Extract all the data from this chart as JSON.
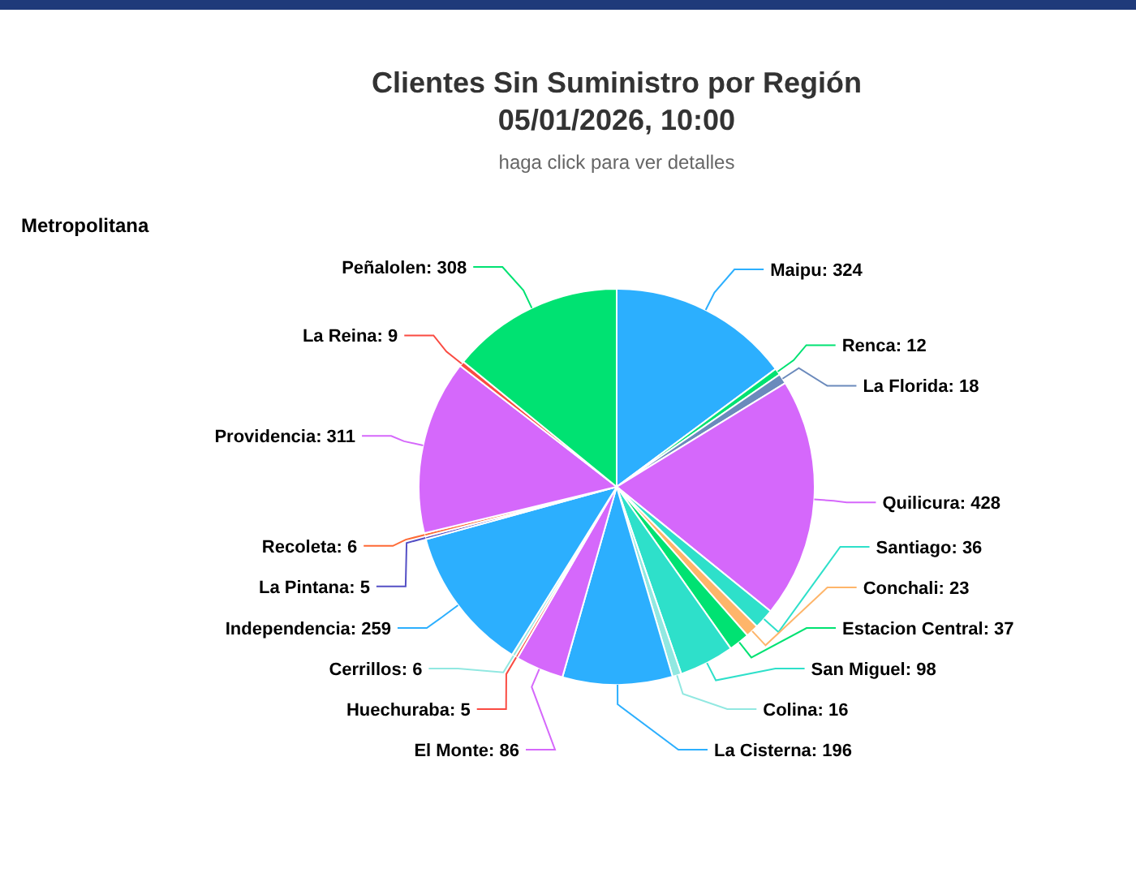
{
  "chart_data": {
    "type": "pie",
    "title": "Clientes Sin Suministro por Región\n05/01/2026, 10:00",
    "subtitle": "haga click para ver detalles",
    "annotations": [
      "Metropolitana"
    ],
    "categories": [
      "Maipu",
      "Renca",
      "La Florida",
      "Quilicura",
      "Santiago",
      "Conchali",
      "Estacion Central",
      "San Miguel",
      "Colina",
      "La Cisterna",
      "El Monte",
      "Huechuraba",
      "Cerrillos",
      "Independencia",
      "La Pintana",
      "Recoleta",
      "Providencia",
      "La Reina",
      "Peñalolen"
    ],
    "values": [
      324,
      12,
      18,
      428,
      36,
      23,
      37,
      98,
      16,
      196,
      86,
      5,
      6,
      259,
      5,
      6,
      311,
      9,
      308
    ],
    "colors": [
      "#2caffe",
      "#00e272",
      "#6b8abc",
      "#d568fb",
      "#2ee0ca",
      "#feb56a",
      "#00e272",
      "#2ee0ca",
      "#91e8e1",
      "#2caffe",
      "#d568fb",
      "#fa4b42",
      "#91e8e1",
      "#2caffe",
      "#544fc5",
      "#fe6a35",
      "#d568fb",
      "#fa4b42",
      "#00e272"
    ],
    "value_labels": [
      ": 324",
      ": 12",
      ": 18",
      ": 428",
      ": 36",
      ": 23",
      ": 37",
      ": 98",
      ": 16",
      ": 196",
      ": 86",
      ": 5",
      ": 6",
      ": 259",
      ": 5",
      ": 6",
      ": 311",
      ": 9",
      ": 308"
    ]
  }
}
